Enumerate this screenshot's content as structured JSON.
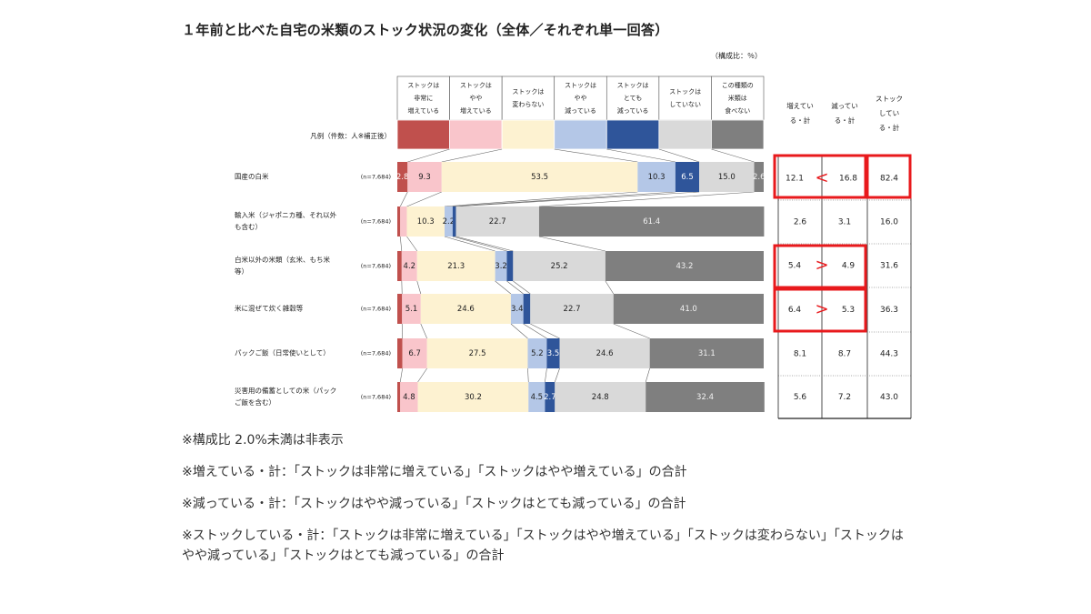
{
  "title": "１年前と比べた自宅の米類のストック状況の変化（全体／それぞれ単一回答）",
  "unit_label": "（構成比：％）",
  "legend_row_label": "凡例（件数：人※補正後）",
  "colors": {
    "c1": "#c0504d",
    "c2": "#f9c5cb",
    "c3": "#fdf2d1",
    "c4": "#b4c7e7",
    "c5": "#2f559a",
    "c6": "#d9d9d9",
    "c7": "#7f7f7f",
    "highlight": "#e8191c"
  },
  "chart_data": {
    "type": "bar",
    "orientation": "horizontal",
    "stacked": true,
    "xlim": [
      0,
      100
    ],
    "categories": [
      [
        "国産の白米"
      ],
      [
        "輸入米（ジャポニカ種、それ以外",
        "も含む）"
      ],
      [
        "白米以外の米類（玄米、もち米",
        "等）"
      ],
      [
        "米に混ぜて炊く雑穀等"
      ],
      [
        "パックご飯（日常使いとして）"
      ],
      [
        "災害用の備蓄としての米（パック",
        "ご飯を含む）"
      ]
    ],
    "n_labels": [
      "(n=7,684)",
      "(n=7,684)",
      "(n=7,684)",
      "(n=7,684)",
      "(n=7,684)",
      "(n=7,684)"
    ],
    "series": [
      {
        "name": [
          "ストックは",
          "非常に",
          "増えている"
        ],
        "color": "#c0504d",
        "values": [
          2.8,
          0.8,
          1.2,
          1.3,
          1.4,
          0.8
        ]
      },
      {
        "name": [
          "ストックは",
          "やや",
          "増えている"
        ],
        "color": "#f9c5cb",
        "values": [
          9.3,
          1.8,
          4.2,
          5.1,
          6.7,
          4.8
        ]
      },
      {
        "name": [
          "ストックは",
          "変わらない"
        ],
        "color": "#fdf2d1",
        "values": [
          53.5,
          10.3,
          21.3,
          24.6,
          27.5,
          30.2
        ]
      },
      {
        "name": [
          "ストックは",
          "やや",
          "減っている"
        ],
        "color": "#b4c7e7",
        "values": [
          10.3,
          2.2,
          3.2,
          3.4,
          5.2,
          4.5
        ]
      },
      {
        "name": [
          "ストックは",
          "とても",
          "減っている"
        ],
        "color": "#2f559a",
        "values": [
          6.5,
          0.9,
          1.7,
          1.9,
          3.5,
          2.7
        ]
      },
      {
        "name": [
          "ストックは",
          "していない"
        ],
        "color": "#d9d9d9",
        "values": [
          15.0,
          22.7,
          25.2,
          22.7,
          24.6,
          24.8
        ]
      },
      {
        "name": [
          "この種類の",
          "米類は",
          "食べない"
        ],
        "color": "#7f7f7f",
        "values": [
          2.6,
          61.4,
          43.2,
          41.0,
          31.1,
          32.4
        ]
      }
    ],
    "value_labels": [
      [
        "2.8",
        "9.3",
        "53.5",
        "10.3",
        "6.5",
        "15.0",
        "2.6"
      ],
      [
        "",
        "",
        "10.3",
        "2.2",
        "",
        "22.7",
        "61.4"
      ],
      [
        "",
        "4.2",
        "21.3",
        "3.2",
        "",
        "25.2",
        "43.2"
      ],
      [
        "",
        "5.1",
        "24.6",
        "3.4",
        "",
        "22.7",
        "41.0"
      ],
      [
        "",
        "6.7",
        "27.5",
        "5.2",
        "3.5",
        "24.6",
        "31.1"
      ],
      [
        "",
        "4.8",
        "30.2",
        "4.5",
        "2.7",
        "24.8",
        "32.4"
      ]
    ],
    "summary_table": {
      "headers": [
        [
          "増えてい",
          "る・計"
        ],
        [
          "減ってい",
          "る・計"
        ],
        [
          "ストック",
          "してい",
          "る・計"
        ]
      ],
      "rows": [
        [
          "12.1",
          "16.8",
          "82.4"
        ],
        [
          "2.6",
          "3.1",
          "16.0"
        ],
        [
          "5.4",
          "4.9",
          "31.6"
        ],
        [
          "6.4",
          "5.3",
          "36.3"
        ],
        [
          "8.1",
          "8.7",
          "44.3"
        ],
        [
          "5.6",
          "7.2",
          "43.0"
        ]
      ],
      "comparison_marks": [
        "<",
        "",
        ">",
        ">",
        "",
        ""
      ]
    }
  },
  "notes": [
    "※構成比 2.0%未満は非表示",
    "※増えている・計：「ストックは非常に増えている」「ストックはやや増えている」の合計",
    "※減っている・計：「ストックはやや減っている」「ストックはとても減っている」の合計",
    "※ストックしている・計：「ストックは非常に増えている」「ストックはやや増えている」「ストックは変わらない」「ストックはやや減っている」「ストックはとても減っている」の合計"
  ]
}
